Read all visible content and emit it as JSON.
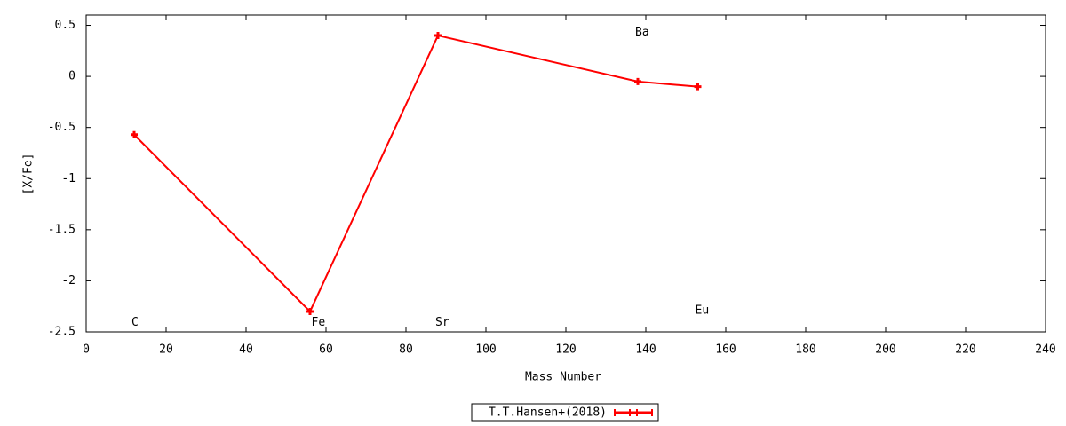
{
  "chart_data": {
    "type": "line",
    "xlabel": "Mass Number",
    "ylabel": "[X/Fe]",
    "x": [
      12,
      56,
      88,
      138,
      153
    ],
    "series": [
      {
        "name": "T.T.Hansen+(2018)",
        "color": "#ff0000",
        "values": [
          -0.57,
          -2.3,
          0.4,
          -0.05,
          -0.1
        ]
      }
    ],
    "annotations": [
      {
        "text": "C",
        "x": 12,
        "y": -2.41
      },
      {
        "text": "Fe",
        "x": 57,
        "y": -2.41
      },
      {
        "text": "Sr",
        "x": 88,
        "y": -2.41
      },
      {
        "text": "Ba",
        "x": 138,
        "y": 0.43
      },
      {
        "text": "Eu",
        "x": 153,
        "y": -2.29
      }
    ],
    "xlim": [
      0,
      240
    ],
    "xticks": [
      0,
      20,
      40,
      60,
      80,
      100,
      120,
      140,
      160,
      180,
      200,
      220,
      240
    ],
    "ylim": [
      -2.5,
      0.6
    ],
    "yticks": [
      0.5,
      0,
      -0.5,
      -1,
      -1.5,
      -2,
      -2.5
    ],
    "grid": false,
    "legend": "bottom"
  }
}
